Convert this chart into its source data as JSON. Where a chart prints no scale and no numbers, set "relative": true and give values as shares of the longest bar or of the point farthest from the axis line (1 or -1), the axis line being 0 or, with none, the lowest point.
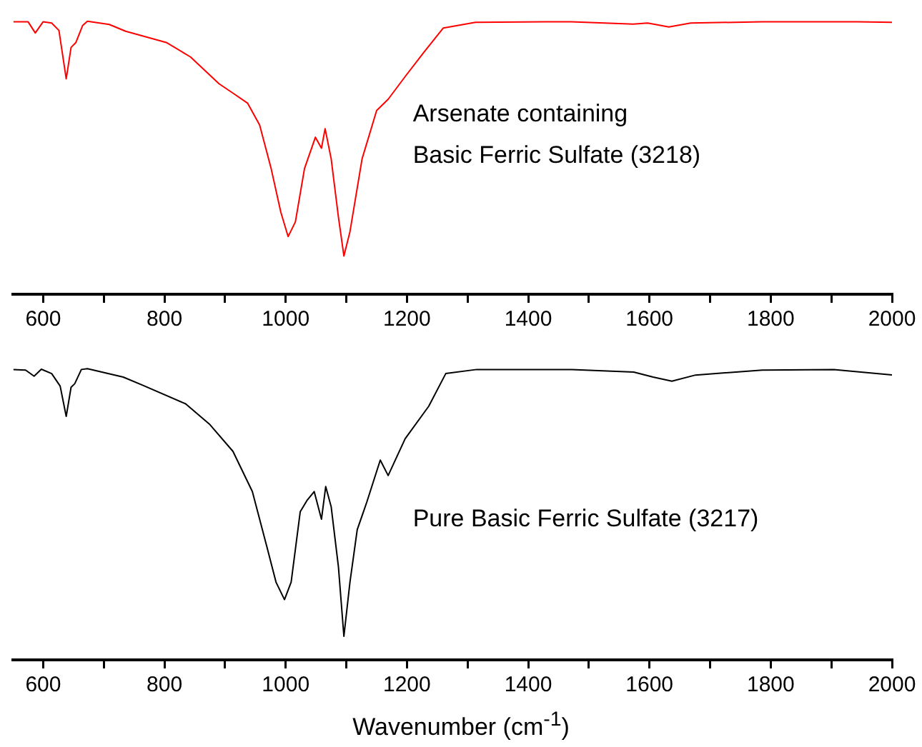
{
  "chart_data": [
    {
      "type": "line",
      "relative": true,
      "xlim": [
        550,
        2000
      ],
      "xticks": [
        600,
        {
          "value": 700,
          "label": null
        },
        800,
        {
          "value": 900,
          "label": null
        },
        1000,
        {
          "value": 1100,
          "label": null
        },
        1200,
        {
          "value": 1300,
          "label": null
        },
        1400,
        {
          "value": 1500,
          "label": null
        },
        1600,
        {
          "value": 1700,
          "label": null
        },
        1800,
        {
          "value": 1900,
          "label": null
        },
        2000
      ],
      "tick_labels": "x",
      "grid": false,
      "legend": false,
      "marker": "none",
      "annotations": [
        "Arsenate containing\nBasic Ferric Sulfate (3218)"
      ],
      "series": [
        {
          "color": "#ff0000",
          "x": [
            551,
            575,
            587,
            600,
            614,
            626,
            638,
            646,
            654,
            665,
            673,
            709,
            736,
            803,
            843,
            890,
            914,
            937,
            957,
            976,
            992,
            1004,
            1016,
            1031,
            1049,
            1059,
            1065,
            1075,
            1087,
            1096,
            1106,
            1126,
            1150,
            1169,
            1197,
            1228,
            1260,
            1313,
            1471,
            1573,
            1597,
            1632,
            1668,
            1786,
            1943,
            2000
          ],
          "values": [
            0.998,
            0.998,
            0.957,
            0.998,
            0.993,
            0.966,
            0.789,
            0.904,
            0.922,
            0.984,
            1.0,
            0.988,
            0.963,
            0.922,
            0.869,
            0.771,
            0.735,
            0.7,
            0.62,
            0.46,
            0.3,
            0.211,
            0.265,
            0.46,
            0.575,
            0.535,
            0.606,
            0.496,
            0.282,
            0.14,
            0.229,
            0.496,
            0.673,
            0.714,
            0.797,
            0.886,
            0.975,
            0.996,
            0.998,
            0.989,
            0.993,
            0.979,
            0.993,
            0.998,
            0.998,
            0.996
          ]
        }
      ]
    },
    {
      "type": "line",
      "relative": true,
      "xlim": [
        550,
        2000
      ],
      "xticks": [
        600,
        {
          "value": 700,
          "label": null
        },
        800,
        {
          "value": 900,
          "label": null
        },
        1000,
        {
          "value": 1100,
          "label": null
        },
        1200,
        {
          "value": 1300,
          "label": null
        },
        1400,
        {
          "value": 1500,
          "label": null
        },
        1600,
        {
          "value": 1700,
          "label": null
        },
        1800,
        {
          "value": 1900,
          "label": null
        },
        2000
      ],
      "tick_labels": "x",
      "grid": false,
      "legend": false,
      "marker": "none",
      "xlabel": "Wavenumber (cm$^{-1}$)",
      "annotations": [
        "Pure Basic Ferric Sulfate (3217)"
      ],
      "series": [
        {
          "color": "#000000",
          "x": [
            551,
            571,
            585,
            597,
            614,
            628,
            638,
            646,
            652,
            663,
            673,
            732,
            764,
            835,
            874,
            913,
            945,
            969,
            984,
            998,
            1009,
            1024,
            1035,
            1047,
            1059,
            1066,
            1075,
            1087,
            1096,
            1106,
            1118,
            1134,
            1156,
            1169,
            1197,
            1236,
            1264,
            1315,
            1472,
            1574,
            1606,
            1637,
            1676,
            1786,
            1904,
            2000
          ],
          "values": [
            0.997,
            0.995,
            0.974,
            0.998,
            0.983,
            0.94,
            0.836,
            0.936,
            0.948,
            0.997,
            1.0,
            0.971,
            0.943,
            0.879,
            0.81,
            0.716,
            0.578,
            0.388,
            0.267,
            0.207,
            0.267,
            0.509,
            0.547,
            0.578,
            0.483,
            0.595,
            0.526,
            0.319,
            0.081,
            0.267,
            0.447,
            0.543,
            0.686,
            0.633,
            0.759,
            0.871,
            0.983,
            0.997,
            0.997,
            0.988,
            0.971,
            0.957,
            0.978,
            0.995,
            0.997,
            0.978
          ]
        }
      ]
    }
  ]
}
